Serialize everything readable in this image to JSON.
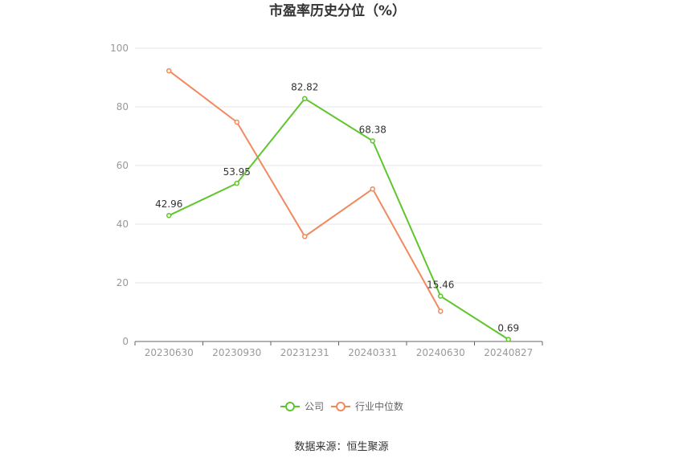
{
  "chart_data": {
    "type": "line",
    "title": "市盈率历史分位（%）",
    "categories": [
      "20230630",
      "20230930",
      "20231231",
      "20240331",
      "20240630",
      "20240827"
    ],
    "series": [
      {
        "name": "公司",
        "color": "#5ec62c",
        "values": [
          42.96,
          53.95,
          82.82,
          68.38,
          15.46,
          0.69
        ],
        "labels": [
          "42.96",
          "53.95",
          "82.82",
          "68.38",
          "15.46",
          "0.69"
        ]
      },
      {
        "name": "行业中位数",
        "color": "#f2895e",
        "values": [
          92.3,
          74.8,
          35.8,
          52.0,
          10.3,
          null
        ]
      }
    ],
    "ylim": [
      0,
      100
    ],
    "yticks": [
      "0",
      "20",
      "40",
      "60",
      "80",
      "100"
    ],
    "grid": true,
    "legend_position": "bottom"
  },
  "footer": {
    "source": "数据来源：恒生聚源"
  }
}
